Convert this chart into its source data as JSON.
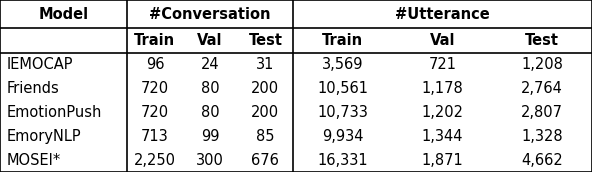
{
  "col_headers_row1_model": "Model",
  "col_headers_row1_conv": "#Conversation",
  "col_headers_row1_utt": "#Utterance",
  "col_headers_row2": [
    "Train",
    "Val",
    "Test",
    "Train",
    "Val",
    "Test"
  ],
  "rows": [
    [
      "IEMOCAP",
      "96",
      "24",
      "31",
      "3,569",
      "721",
      "1,208"
    ],
    [
      "Friends",
      "720",
      "80",
      "200",
      "10,561",
      "1,178",
      "2,764"
    ],
    [
      "EmotionPush",
      "720",
      "80",
      "200",
      "10,733",
      "1,202",
      "2,807"
    ],
    [
      "EmoryNLP",
      "713",
      "99",
      "85",
      "9,934",
      "1,344",
      "1,328"
    ],
    [
      "MOSEI*",
      "2,250",
      "300",
      "676",
      "16,331",
      "1,871",
      "4,662"
    ]
  ],
  "model_divider": 0.215,
  "conv_utt_divider": 0.495,
  "border_color": "#000000",
  "bg_color": "#ffffff",
  "font_size": 10.5,
  "header_font_size": 10.5
}
